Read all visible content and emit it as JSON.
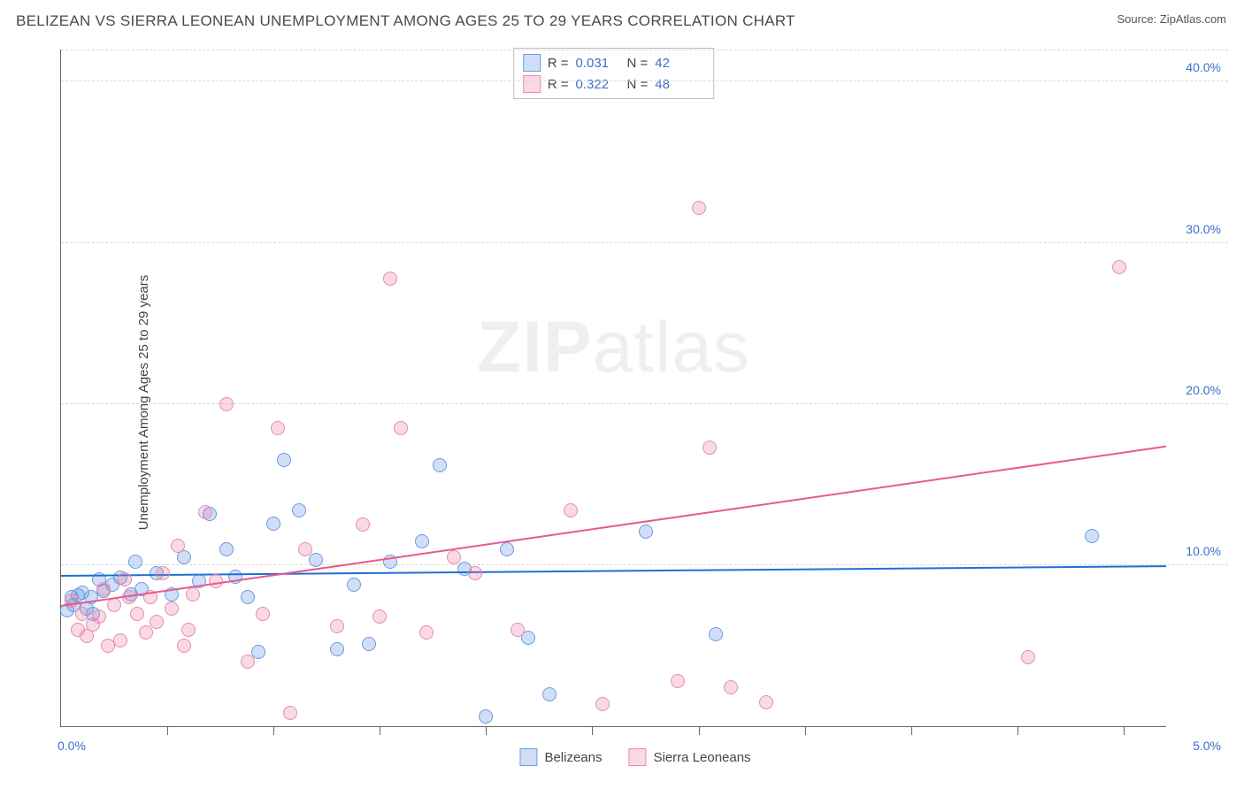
{
  "title": "BELIZEAN VS SIERRA LEONEAN UNEMPLOYMENT AMONG AGES 25 TO 29 YEARS CORRELATION CHART",
  "source": "Source: ZipAtlas.com",
  "ylabel": "Unemployment Among Ages 25 to 29 years",
  "watermark_bold": "ZIP",
  "watermark_light": "atlas",
  "chart": {
    "type": "scatter",
    "xlim": [
      0,
      5.2
    ],
    "ylim": [
      0,
      42
    ],
    "x_axis_label_left": "0.0%",
    "x_axis_label_right": "5.0%",
    "y_ticks": [
      {
        "v": 10,
        "label": "10.0%"
      },
      {
        "v": 20,
        "label": "20.0%"
      },
      {
        "v": 30,
        "label": "30.0%"
      },
      {
        "v": 40,
        "label": "40.0%"
      }
    ],
    "x_tick_positions": [
      0.5,
      1.0,
      1.5,
      2.0,
      2.5,
      3.0,
      3.5,
      4.0,
      4.5,
      5.0
    ],
    "background_color": "#ffffff",
    "grid_color": "#d8d8d8",
    "point_radius": 8,
    "series": [
      {
        "name": "Belizeans",
        "fill": "rgba(100,150,230,0.30)",
        "stroke": "#6a9be0",
        "trend": {
          "y_at_x0": 9.3,
          "y_at_xmax": 9.9,
          "color": "#1f6fd4",
          "width": 2
        },
        "R": "0.031",
        "N": "42",
        "points": [
          [
            0.03,
            7.2
          ],
          [
            0.05,
            8.0
          ],
          [
            0.06,
            7.5
          ],
          [
            0.08,
            8.1
          ],
          [
            0.1,
            8.3
          ],
          [
            0.12,
            7.3
          ],
          [
            0.14,
            8.0
          ],
          [
            0.18,
            9.1
          ],
          [
            0.2,
            8.4
          ],
          [
            0.24,
            8.8
          ],
          [
            0.28,
            9.2
          ],
          [
            0.33,
            8.2
          ],
          [
            0.35,
            10.2
          ],
          [
            0.38,
            8.5
          ],
          [
            0.45,
            9.5
          ],
          [
            0.52,
            8.2
          ],
          [
            0.58,
            10.5
          ],
          [
            0.65,
            9.0
          ],
          [
            0.7,
            13.2
          ],
          [
            0.78,
            11.0
          ],
          [
            0.82,
            9.3
          ],
          [
            0.88,
            8.0
          ],
          [
            0.93,
            4.6
          ],
          [
            1.0,
            12.6
          ],
          [
            1.05,
            16.5
          ],
          [
            1.12,
            13.4
          ],
          [
            1.2,
            10.3
          ],
          [
            1.3,
            4.8
          ],
          [
            1.38,
            8.8
          ],
          [
            1.45,
            5.1
          ],
          [
            1.55,
            10.2
          ],
          [
            1.7,
            11.5
          ],
          [
            1.78,
            16.2
          ],
          [
            1.9,
            9.8
          ],
          [
            2.0,
            0.6
          ],
          [
            2.1,
            11.0
          ],
          [
            2.2,
            5.5
          ],
          [
            2.3,
            2.0
          ],
          [
            2.75,
            12.1
          ],
          [
            3.08,
            5.7
          ],
          [
            4.85,
            11.8
          ],
          [
            0.15,
            7.0
          ]
        ]
      },
      {
        "name": "Sierra Leoneans",
        "fill": "rgba(235,120,160,0.28)",
        "stroke": "#e88bad",
        "trend": {
          "y_at_x0": 7.4,
          "y_at_xmax": 17.3,
          "color": "#e85a8d",
          "width": 2
        },
        "R": "0.322",
        "N": "48",
        "points": [
          [
            0.05,
            7.8
          ],
          [
            0.08,
            6.0
          ],
          [
            0.1,
            7.0
          ],
          [
            0.12,
            5.6
          ],
          [
            0.15,
            6.3
          ],
          [
            0.18,
            6.8
          ],
          [
            0.22,
            5.0
          ],
          [
            0.25,
            7.5
          ],
          [
            0.28,
            5.3
          ],
          [
            0.32,
            8.0
          ],
          [
            0.36,
            7.0
          ],
          [
            0.4,
            5.8
          ],
          [
            0.45,
            6.5
          ],
          [
            0.48,
            9.5
          ],
          [
            0.52,
            7.3
          ],
          [
            0.58,
            5.0
          ],
          [
            0.62,
            8.2
          ],
          [
            0.68,
            13.3
          ],
          [
            0.73,
            9.0
          ],
          [
            0.78,
            20.0
          ],
          [
            0.88,
            4.0
          ],
          [
            0.95,
            7.0
          ],
          [
            1.02,
            18.5
          ],
          [
            1.08,
            0.8
          ],
          [
            1.15,
            11.0
          ],
          [
            1.3,
            6.2
          ],
          [
            1.42,
            12.5
          ],
          [
            1.5,
            6.8
          ],
          [
            1.55,
            27.8
          ],
          [
            1.6,
            18.5
          ],
          [
            1.72,
            5.8
          ],
          [
            1.85,
            10.5
          ],
          [
            1.95,
            9.5
          ],
          [
            2.15,
            6.0
          ],
          [
            2.4,
            13.4
          ],
          [
            2.55,
            1.4
          ],
          [
            2.9,
            2.8
          ],
          [
            3.0,
            32.2
          ],
          [
            3.05,
            17.3
          ],
          [
            3.15,
            2.4
          ],
          [
            3.32,
            1.5
          ],
          [
            4.55,
            4.3
          ],
          [
            4.98,
            28.5
          ],
          [
            0.3,
            9.1
          ],
          [
            0.55,
            11.2
          ],
          [
            0.42,
            8.0
          ],
          [
            0.2,
            8.5
          ],
          [
            0.6,
            6.0
          ]
        ]
      }
    ]
  },
  "bottom_legend": [
    {
      "label": "Belizeans",
      "fill": "rgba(100,150,230,0.30)",
      "stroke": "#6a9be0"
    },
    {
      "label": "Sierra Leoneans",
      "fill": "rgba(235,120,160,0.28)",
      "stroke": "#e88bad"
    }
  ]
}
